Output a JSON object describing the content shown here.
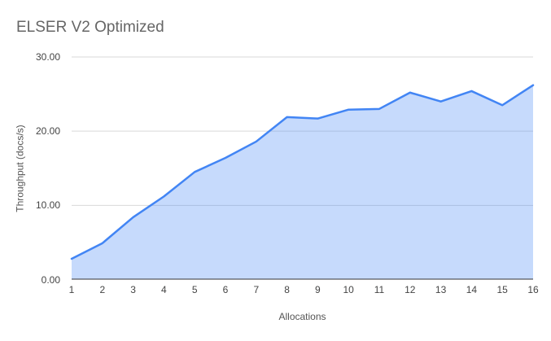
{
  "title": "ELSER V2 Optimized",
  "chart_data": {
    "type": "area",
    "title": "ELSER V2 Optimized",
    "xlabel": "Allocations",
    "ylabel": "Throughput (docs/s)",
    "x": [
      1,
      2,
      3,
      4,
      5,
      6,
      7,
      8,
      9,
      10,
      11,
      12,
      13,
      14,
      15,
      16
    ],
    "series": [
      {
        "name": "Throughput (docs/s)",
        "values": [
          2.8,
          4.9,
          8.4,
          11.2,
          14.5,
          16.4,
          18.6,
          21.9,
          21.7,
          22.9,
          23.0,
          25.2,
          24.0,
          25.4,
          23.5,
          26.2
        ]
      }
    ],
    "ylim": [
      0,
      30
    ],
    "yticks": [
      0,
      10,
      20,
      30
    ],
    "ytick_labels": [
      "0.00",
      "10.00",
      "20.00",
      "30.00"
    ],
    "xtick_labels": [
      "1",
      "2",
      "3",
      "4",
      "5",
      "6",
      "7",
      "8",
      "9",
      "10",
      "11",
      "12",
      "13",
      "14",
      "15",
      "16"
    ],
    "grid": true,
    "legend_position": "none",
    "colors": {
      "line": "#4285f4",
      "fill": "rgba(66,133,244,0.3)",
      "grid": "#d9d9d9",
      "axis_line": "#333333",
      "title_text": "#666666",
      "tick_text": "#444444"
    }
  }
}
